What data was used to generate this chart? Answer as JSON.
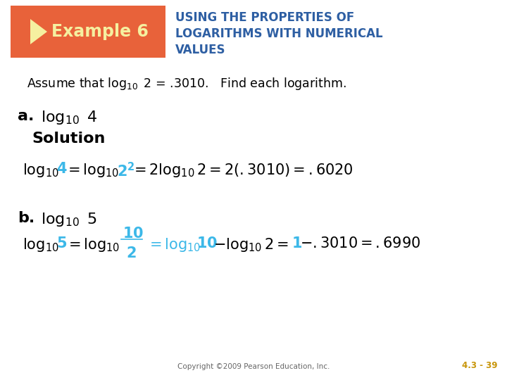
{
  "background_color": "#ffffff",
  "header_box_color": "#e8623a",
  "header_box_text": "Example 6",
  "header_box_text_color": "#f5f0a0",
  "header_title_color": "#2e5fa3",
  "header_title_lines": [
    "USING THE PROPERTIES OF",
    "LOGARITHMS WITH NUMERICAL",
    "VALUES"
  ],
  "assume_text_color": "#000000",
  "black": "#000000",
  "blue_color": "#3cb8e8",
  "solution_color": "#000000",
  "footer_text": "Copyright ©2009 Pearson Education, Inc.",
  "footer_page": "4.3 - 39",
  "footer_color": "#c8960a",
  "footer_text_color": "#666666"
}
